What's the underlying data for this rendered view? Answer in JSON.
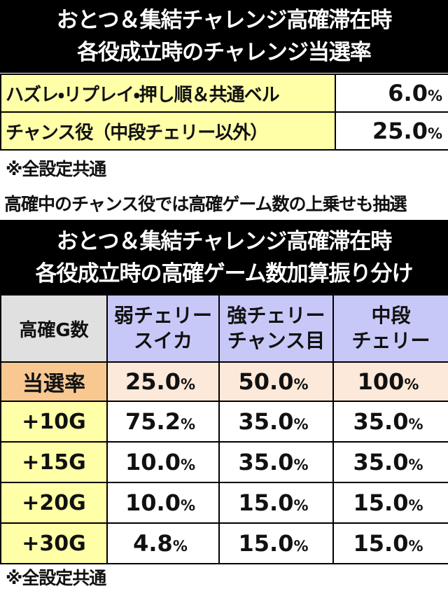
{
  "header1": {
    "lines": [
      "おとつ＆集結チャレンジ高確滞在時",
      "各役成立時のチャレンジ当選率"
    ]
  },
  "table1": {
    "rows": [
      [
        {
          "text": "ハズレ・リプレイ・押し順＆共通ベル"
        },
        {
          "num": "6.0",
          "unit": "%"
        }
      ],
      [
        {
          "text": "チャンス役（中段チェリー以外）"
        },
        {
          "num": "25.0",
          "unit": "%"
        }
      ]
    ]
  },
  "notes": [
    "※全設定共通",
    "高確中のチャンス役では高確ゲーム数の上乗せも抽選"
  ],
  "header2": {
    "lines": [
      "おとつ＆集結チャレンジ高確滞在時",
      "各役成立時の高確ゲーム数加算振り分け"
    ]
  },
  "table2": {
    "columns": [
      [
        "高確G数"
      ],
      [
        "弱チェリー",
        "スイカ"
      ],
      [
        "強チェリー",
        "チャンス目"
      ],
      [
        "中段",
        "チェリー"
      ]
    ],
    "rows": [
      {
        "label": "当選率",
        "cells": [
          {
            "num": "25.0",
            "unit": "%"
          },
          {
            "num": "50.0",
            "unit": "%"
          },
          {
            "num": "100",
            "unit": "%"
          }
        ]
      },
      {
        "label": "+10G",
        "cells": [
          {
            "num": "75.2",
            "unit": "%"
          },
          {
            "num": "35.0",
            "unit": "%"
          },
          {
            "num": "35.0",
            "unit": "%"
          }
        ]
      },
      {
        "label": "+15G",
        "cells": [
          {
            "num": "10.0",
            "unit": "%"
          },
          {
            "num": "35.0",
            "unit": "%"
          },
          {
            "num": "35.0",
            "unit": "%"
          }
        ]
      },
      {
        "label": "+20G",
        "cells": [
          {
            "num": "10.0",
            "unit": "%"
          },
          {
            "num": "15.0",
            "unit": "%"
          },
          {
            "num": "15.0",
            "unit": "%"
          }
        ]
      },
      {
        "label": "+30G",
        "cells": [
          {
            "num": "4.8",
            "unit": "%"
          },
          {
            "num": "15.0",
            "unit": "%"
          },
          {
            "num": "15.0",
            "unit": "%"
          }
        ]
      }
    ]
  },
  "footer": "※全設定共通"
}
